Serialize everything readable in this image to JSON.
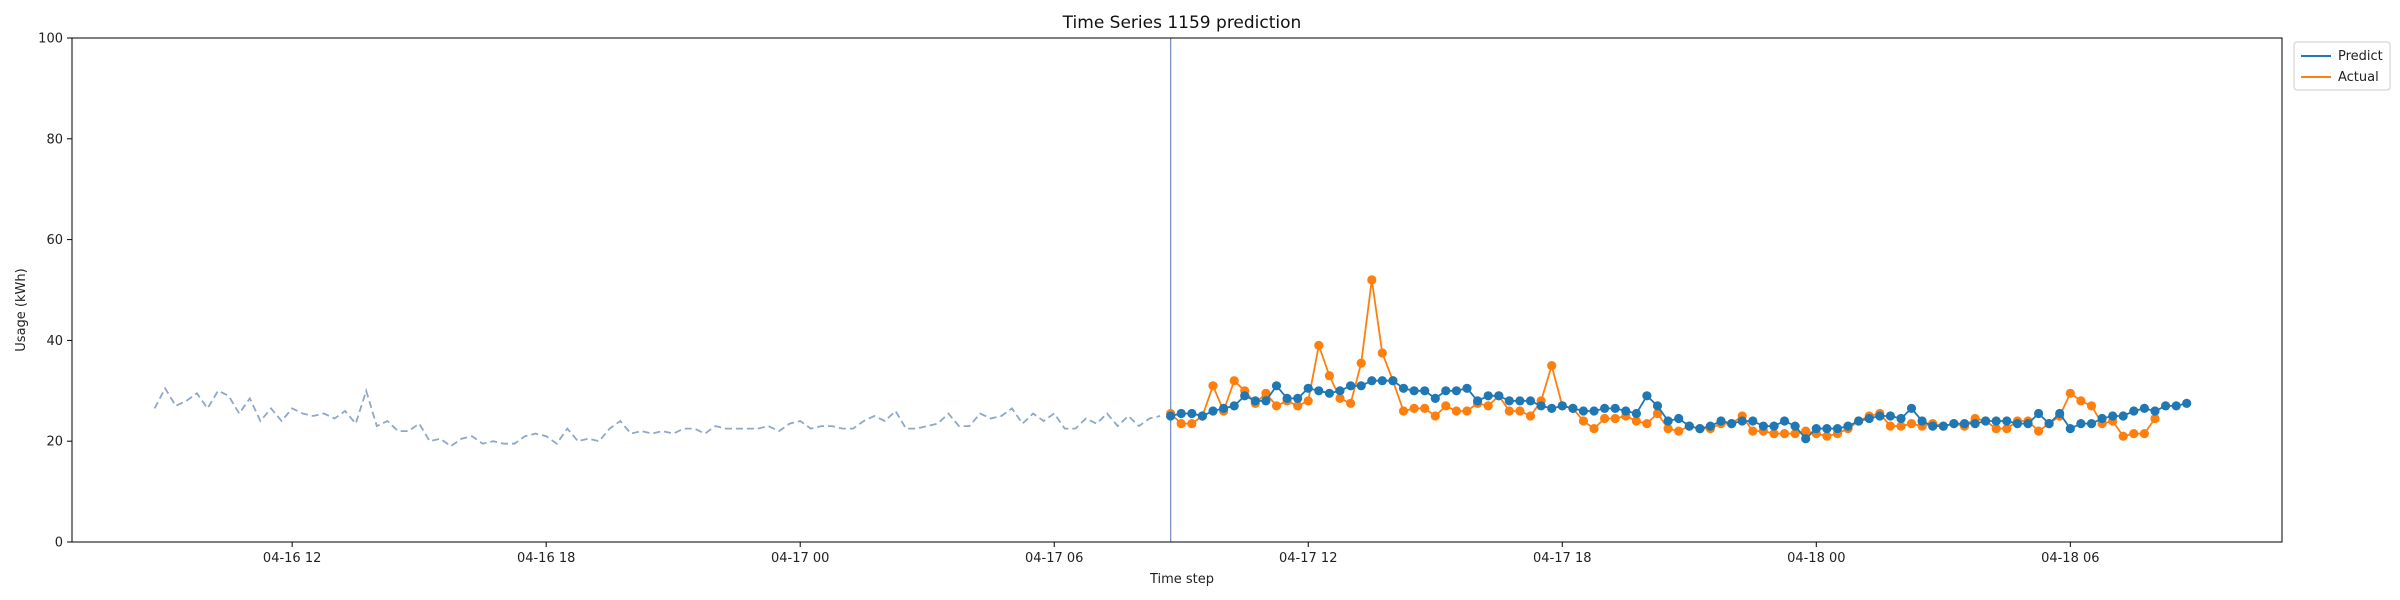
{
  "chart_data": {
    "type": "line",
    "title": "Time Series 1159 prediction",
    "xlabel": "Time step",
    "ylabel": "Usage (kWh)",
    "ylim": [
      0,
      100
    ],
    "xlim": [
      "2024-04-16 06:48",
      "2024-04-18 11:00"
    ],
    "x_ticks": [
      "2024-04-16 12:00",
      "2024-04-16 18:00",
      "2024-04-17 00:00",
      "2024-04-17 06:00",
      "2024-04-17 12:00",
      "2024-04-17 18:00",
      "2024-04-18 00:00",
      "2024-04-18 06:00"
    ],
    "x_tick_labels": [
      "04-16 12",
      "04-16 18",
      "04-17 00",
      "04-17 06",
      "04-17 12",
      "04-17 18",
      "04-18 00",
      "04-18 06"
    ],
    "y_ticks": [
      0,
      20,
      40,
      60,
      80,
      100
    ],
    "grid": false,
    "legend_position": "outside-top-right",
    "forecast_start": "2024-04-17 08:45",
    "history": {
      "start": "2024-04-16 08:45",
      "step_minutes": 15,
      "values": [
        26.5,
        30.5,
        27,
        28,
        29.5,
        26.5,
        30,
        29,
        25.5,
        28.5,
        24,
        26.5,
        24,
        26.5,
        25.5,
        25,
        25.5,
        24.5,
        26,
        23.5,
        30,
        23,
        24,
        22,
        22,
        23.5,
        20,
        20.5,
        19,
        20.5,
        21,
        19.5,
        20,
        19.5,
        19.5,
        21,
        21.5,
        21,
        19.5,
        22.5,
        20,
        20.5,
        20,
        22.5,
        24,
        21.5,
        22,
        21.5,
        22,
        21.5,
        22.5,
        22.5,
        21.5,
        23,
        22.5,
        22.5,
        22.5,
        22.5,
        23,
        22,
        23.5,
        24,
        22.5,
        23,
        23,
        22.5,
        22.5,
        24,
        25,
        24,
        26,
        22.5,
        22.5,
        23,
        23.5,
        25.5,
        23,
        23,
        25.5,
        24.5,
        25,
        26.5,
        23.5,
        25.5,
        24,
        25.5,
        22.5,
        22.5,
        24.5,
        23.5,
        25.5,
        23,
        25,
        23,
        24.5,
        25
      ]
    },
    "forecast": {
      "start": "2024-04-17 08:45",
      "step_minutes": 15,
      "x_span": "2024-04-17 08:45 to 2024-04-18 08:45",
      "series": [
        {
          "name": "Predict",
          "color": "#1f77b4",
          "values": [
            25,
            25.5,
            25.5,
            25,
            26,
            26.5,
            27,
            29,
            28,
            28,
            31,
            28.5,
            28.5,
            30.5,
            30,
            29.5,
            30,
            31,
            31,
            32,
            32,
            32,
            30.5,
            30,
            30,
            28.5,
            30,
            30,
            30.5,
            28,
            29,
            29,
            28,
            28,
            28,
            27,
            26.5,
            27,
            26.5,
            26,
            26,
            26.5,
            26.5,
            26,
            25.5,
            29,
            27,
            24,
            24.5,
            23,
            22.5,
            23,
            24,
            23.5,
            24,
            24,
            23,
            23,
            24,
            23,
            20.5,
            22.5,
            22.5,
            22.5,
            23,
            24,
            24.5,
            25,
            25,
            24.5,
            26.5,
            24,
            23,
            23,
            23.5,
            23.5,
            23.5,
            24,
            24,
            24,
            23.5,
            23.5,
            25.5,
            23.5,
            25.5,
            22.5,
            23.5,
            23.5,
            24.5,
            25,
            25,
            26,
            26.5,
            26,
            27,
            27,
            27.5
          ]
        },
        {
          "name": "Actual",
          "color": "#ff7f0e",
          "values": [
            25.5,
            23.5,
            23.5,
            25,
            31,
            26,
            32,
            30,
            27.5,
            29.5,
            27,
            28,
            27,
            28,
            39,
            33,
            28.5,
            27.5,
            35.5,
            52,
            37.5,
            32,
            26,
            26.5,
            26.5,
            25,
            27,
            26,
            26,
            27.5,
            27,
            29,
            26,
            26,
            25,
            28,
            35,
            27,
            26.5,
            24,
            22.5,
            24.5,
            24.5,
            25,
            24,
            23.5,
            25.5,
            22.5,
            22,
            23,
            22.5,
            22.5,
            23.5,
            23.5,
            25,
            22,
            22,
            21.5,
            21.5,
            21.5,
            22,
            21.5,
            21,
            21.5,
            22.5,
            24,
            25,
            25.5,
            23,
            23,
            23.5,
            23,
            23.5,
            23,
            23.5,
            23,
            24.5,
            24,
            22.5,
            22.5,
            24,
            24,
            22,
            23.5,
            25,
            29.5,
            28,
            27,
            23.5,
            24,
            21,
            21.5,
            21.5,
            24.5
          ]
        }
      ]
    }
  },
  "legend": {
    "items": [
      {
        "label": "Predict",
        "color": "#1f77b4"
      },
      {
        "label": "Actual",
        "color": "#ff7f0e"
      }
    ]
  },
  "colors": {
    "history_line": "#8fa8c8",
    "forecast_start_line": "#7b93c4"
  }
}
